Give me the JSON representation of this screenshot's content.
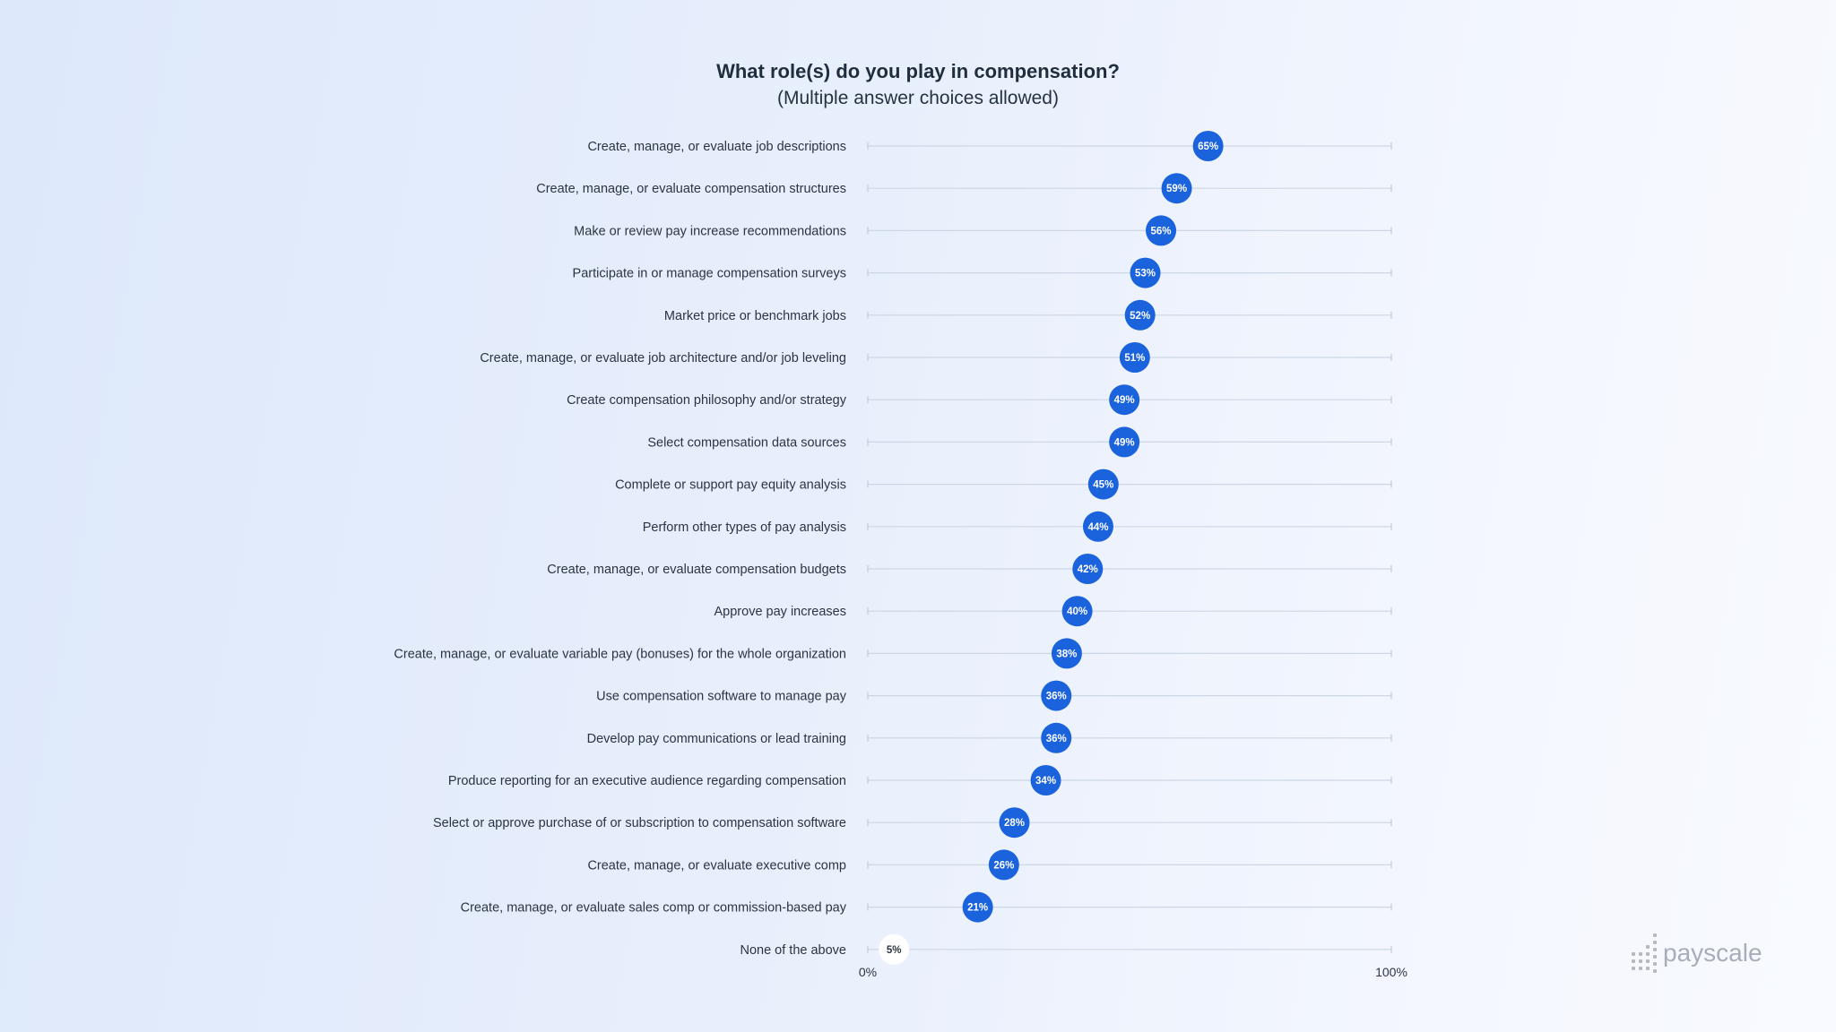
{
  "chart_data": {
    "type": "scatter",
    "title": "What role(s) do you play in compensation?",
    "subtitle": "(Multiple answer choices allowed)",
    "xlim": [
      0,
      100
    ],
    "x_tick_labels": [
      "0%",
      "100%"
    ],
    "grid": false,
    "categories": [
      "Create, manage, or evaluate job descriptions",
      "Create, manage, or evaluate compensation structures",
      "Make or review pay increase recommendations",
      "Participate in or manage compensation surveys",
      "Market price or benchmark jobs",
      "Create, manage, or evaluate job architecture and/or job leveling",
      "Create compensation philosophy and/or strategy",
      "Select compensation data sources",
      "Complete or support pay equity analysis",
      "Perform other types of pay analysis",
      "Create, manage, or evaluate compensation budgets",
      "Approve pay increases",
      "Create, manage, or evaluate variable pay (bonuses) for the whole organization",
      "Use compensation software to manage pay",
      "Develop pay communications or lead training",
      "Produce reporting for an executive audience regarding compensation",
      "Select or approve purchase of or subscription to compensation software",
      "Create, manage, or evaluate executive comp",
      "Create, manage, or evaluate sales comp or commission-based pay",
      "None of the above"
    ],
    "values": [
      65,
      59,
      56,
      53,
      52,
      51,
      49,
      49,
      45,
      44,
      42,
      40,
      38,
      36,
      36,
      34,
      28,
      26,
      21,
      5
    ],
    "value_labels": [
      "65%",
      "59%",
      "56%",
      "53%",
      "52%",
      "51%",
      "49%",
      "49%",
      "45%",
      "44%",
      "42%",
      "40%",
      "38%",
      "36%",
      "36%",
      "34%",
      "28%",
      "26%",
      "21%",
      "5%"
    ],
    "colors": {
      "dot": "#1b63dd",
      "dot_text": "#ffffff",
      "highlight_dot": "#ffffff",
      "highlight_text": "#2c3440"
    },
    "highlight_index": 19
  },
  "logo": {
    "text": "payscale"
  }
}
